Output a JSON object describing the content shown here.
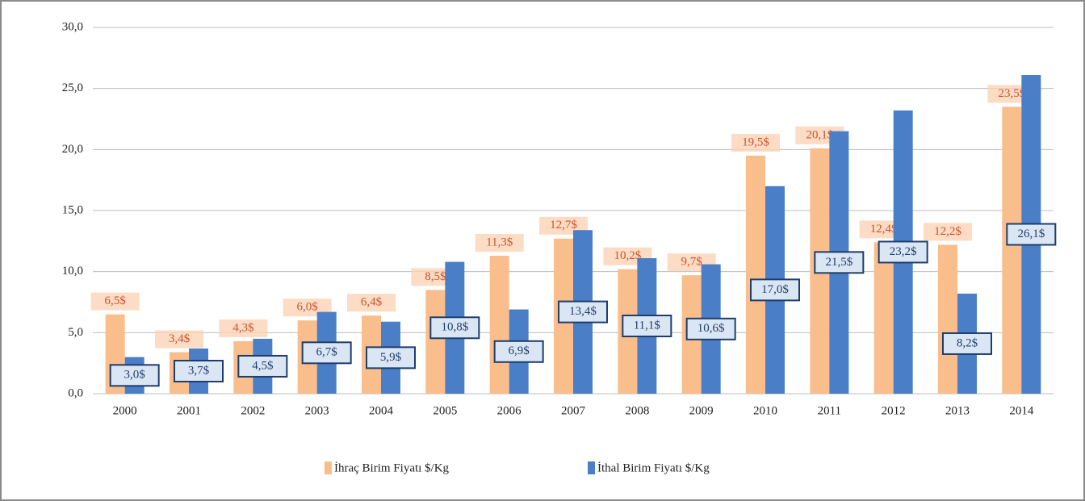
{
  "chart_data": {
    "type": "bar",
    "categories": [
      "2000",
      "2001",
      "2002",
      "2003",
      "2004",
      "2005",
      "2006",
      "2007",
      "2008",
      "2009",
      "2010",
      "2011",
      "2012",
      "2013",
      "2014"
    ],
    "series": [
      {
        "name": "İhraç Birim Fiyatı $/Kg",
        "color": "#f9be8c",
        "values": [
          6.5,
          3.4,
          4.3,
          6.0,
          6.4,
          8.5,
          11.3,
          12.7,
          10.2,
          9.7,
          19.5,
          20.1,
          12.4,
          12.2,
          23.5
        ],
        "value_labels": [
          "6,5$",
          "3,4$",
          "4,3$",
          "6,0$",
          "6,4$",
          "8,5$",
          "11,3$",
          "12,7$",
          "10,2$",
          "9,7$",
          "19,5$",
          "20,1$",
          "12,4$",
          "12,2$",
          "23,5$"
        ]
      },
      {
        "name": "İthal Birim Fiyatı $/Kg",
        "color": "#4a7ec6",
        "values": [
          3.0,
          3.7,
          4.5,
          6.7,
          5.9,
          10.8,
          6.9,
          13.4,
          11.1,
          10.6,
          17.0,
          21.5,
          23.2,
          8.2,
          26.1
        ],
        "value_labels": [
          "3,0$",
          "3,7$",
          "4,5$",
          "6,7$",
          "5,9$",
          "10,8$",
          "6,9$",
          "13,4$",
          "11,1$",
          "10,6$",
          "17,0$",
          "21,5$",
          "23,2$",
          "8,2$",
          "26,1$"
        ]
      }
    ],
    "ylim": [
      0,
      30
    ],
    "yticks": [
      {
        "value": 0,
        "label": "0,0"
      },
      {
        "value": 5,
        "label": "5,0"
      },
      {
        "value": 10,
        "label": "10,0"
      },
      {
        "value": 15,
        "label": "15,0"
      },
      {
        "value": 20,
        "label": "20,0"
      },
      {
        "value": 25,
        "label": "25,0"
      },
      {
        "value": 30,
        "label": "30,0"
      }
    ],
    "grid": true,
    "legend": "bottom"
  }
}
